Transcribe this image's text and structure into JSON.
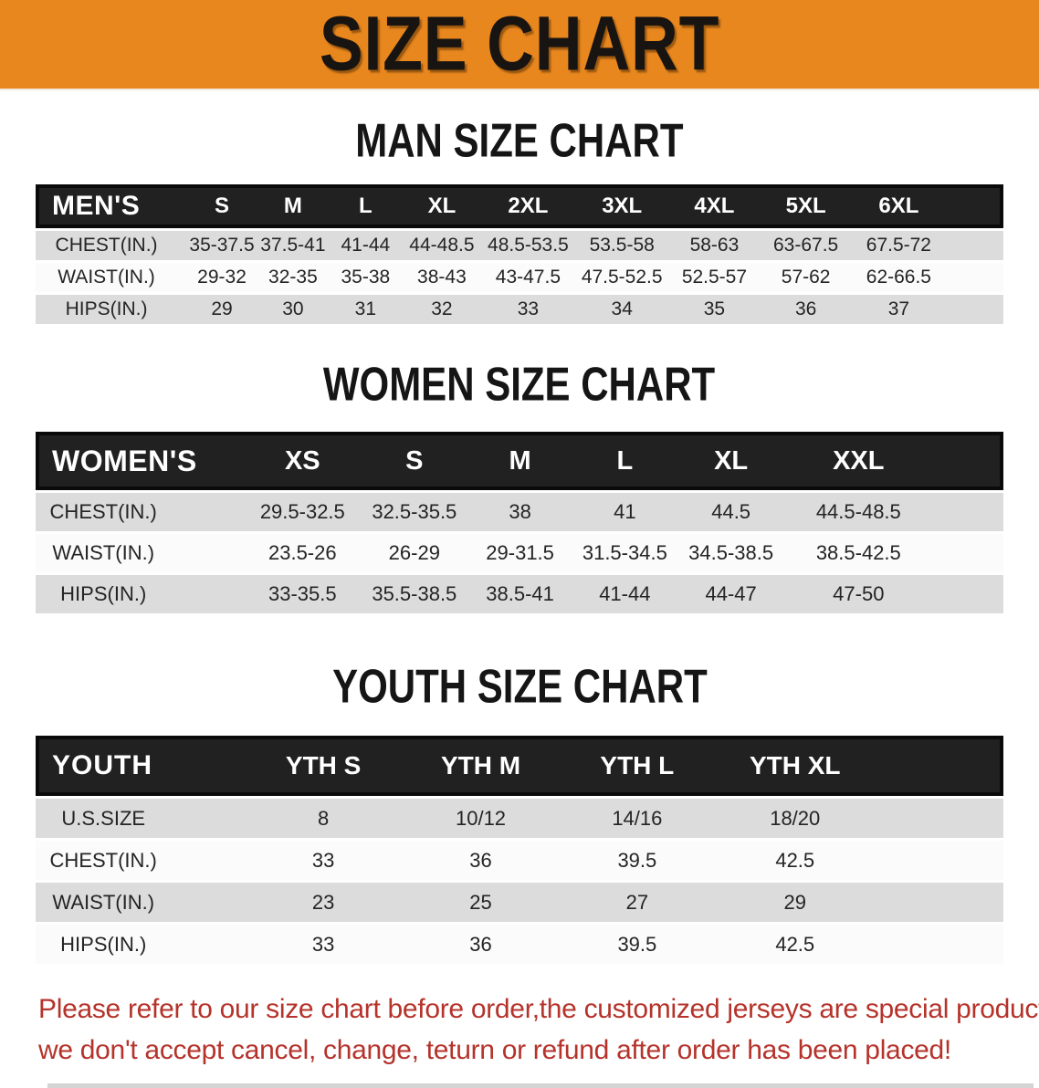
{
  "banner": {
    "title": "SIZE CHART"
  },
  "colors": {
    "banner_bg": "#E8871E",
    "header_bar": "#212121",
    "row_gray": "#DCDCDC",
    "row_white": "#FBFBFB",
    "notice_red": "#B5332B"
  },
  "sections": [
    {
      "heading": "MAN SIZE CHART",
      "table": {
        "header_label": "MEN'S",
        "columns": [
          "S",
          "M",
          "L",
          "XL",
          "2XL",
          "3XL",
          "4XL",
          "5XL",
          "6XL"
        ],
        "rows": [
          {
            "label": "CHEST(IN.)",
            "values": [
              "35-37.5",
              "37.5-41",
              "41-44",
              "44-48.5",
              "48.5-53.5",
              "53.5-58",
              "58-63",
              "63-67.5",
              "67.5-72"
            ]
          },
          {
            "label": "WAIST(IN.)",
            "values": [
              "29-32",
              "32-35",
              "35-38",
              "38-43",
              "43-47.5",
              "47.5-52.5",
              "52.5-57",
              "57-62",
              "62-66.5"
            ]
          },
          {
            "label": "HIPS(IN.)",
            "values": [
              "29",
              "30",
              "31",
              "32",
              "33",
              "34",
              "35",
              "36",
              "37"
            ]
          }
        ]
      }
    },
    {
      "heading": "WOMEN SIZE CHART",
      "table": {
        "header_label": "WOMEN'S",
        "columns": [
          "XS",
          "S",
          "M",
          "L",
          "XL",
          "XXL"
        ],
        "rows": [
          {
            "label": "CHEST(IN.)",
            "values": [
              "29.5-32.5",
              "32.5-35.5",
              "38",
              "41",
              "44.5",
              "44.5-48.5"
            ]
          },
          {
            "label": "WAIST(IN.)",
            "values": [
              "23.5-26",
              "26-29",
              "29-31.5",
              "31.5-34.5",
              "34.5-38.5",
              "38.5-42.5"
            ]
          },
          {
            "label": "HIPS(IN.)",
            "values": [
              "33-35.5",
              "35.5-38.5",
              "38.5-41",
              "41-44",
              "44-47",
              "47-50"
            ]
          }
        ]
      }
    },
    {
      "heading": "YOUTH SIZE CHART",
      "table": {
        "header_label": "YOUTH",
        "columns": [
          "YTH S",
          "YTH M",
          "YTH L",
          "YTH XL"
        ],
        "rows": [
          {
            "label": "U.S.SIZE",
            "values": [
              "8",
              "10/12",
              "14/16",
              "18/20"
            ]
          },
          {
            "label": "CHEST(IN.)",
            "values": [
              "33",
              "36",
              "39.5",
              "42.5"
            ]
          },
          {
            "label": "WAIST(IN.)",
            "values": [
              "23",
              "25",
              "27",
              "29"
            ]
          },
          {
            "label": "HIPS(IN.)",
            "values": [
              "33",
              "36",
              "39.5",
              "42.5"
            ]
          }
        ]
      }
    }
  ],
  "footer": {
    "line1": "Please refer to our size chart before order,the customized jerseys are special products,",
    "line2": "we don't accept cancel, change, teturn or refund after order has been placed!"
  }
}
